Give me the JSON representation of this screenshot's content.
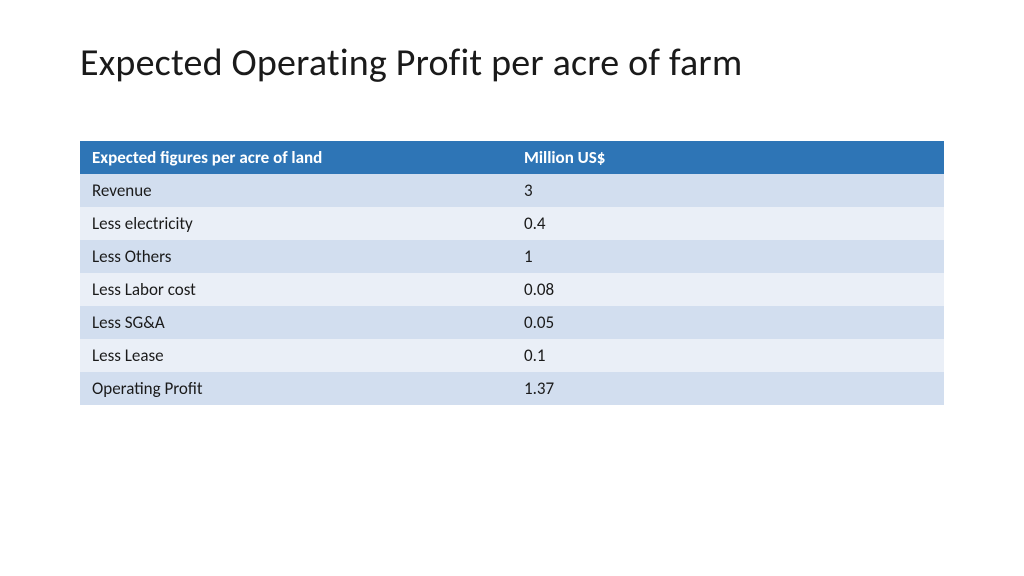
{
  "title": "Expected Operating Profit per acre of farm",
  "table": {
    "type": "table",
    "header_bg": "#2e75b6",
    "header_fg": "#ffffff",
    "row_bg_even": "#d2deef",
    "row_bg_odd": "#eaeff7",
    "cell_fg": "#1a1a1a",
    "title_fontsize": 38,
    "cell_fontsize": 17,
    "columns": [
      {
        "label": "Expected figures per acre of land",
        "width_pct": 50
      },
      {
        "label": "Million US$",
        "width_pct": 50
      }
    ],
    "rows": [
      {
        "label": "Revenue",
        "value": "3"
      },
      {
        "label": "Less electricity",
        "value": "0.4"
      },
      {
        "label": "Less Others",
        "value": "1"
      },
      {
        "label": "Less Labor cost",
        "value": "0.08"
      },
      {
        "label": "Less SG&A",
        "value": "0.05"
      },
      {
        "label": "Less Lease",
        "value": "0.1"
      },
      {
        "label": "Operating Profit",
        "value": "1.37"
      }
    ]
  }
}
